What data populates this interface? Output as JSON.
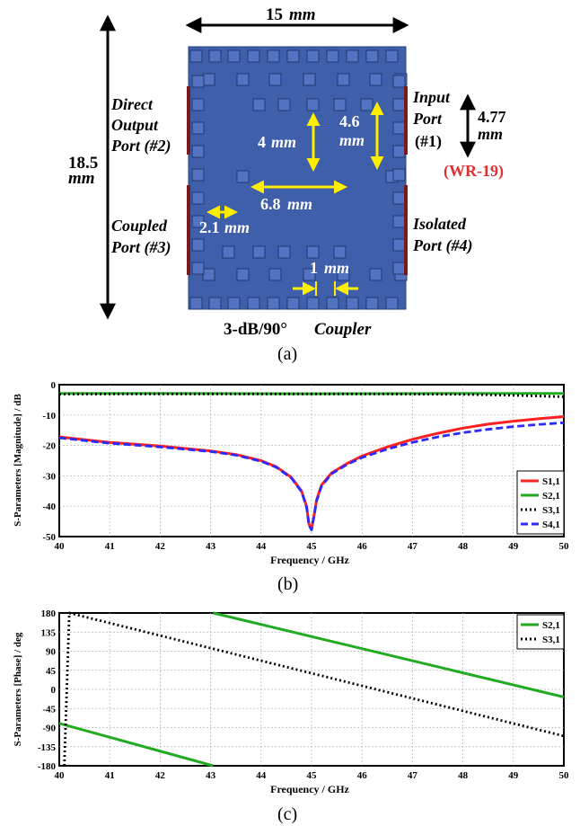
{
  "panel_a": {
    "width_value": "15",
    "width_unit": "mm",
    "height_value": "18.5",
    "height_unit": "mm",
    "direct_port": [
      "Direct",
      "Output",
      "Port (#2)"
    ],
    "coupled_port": [
      "Coupled",
      "Port (#3)"
    ],
    "input_port": [
      "Input",
      "Port",
      "(#1)"
    ],
    "isolated_port": [
      "Isolated",
      "Port (#4)"
    ],
    "waveguide_value": "4.77",
    "waveguide_unit": "mm",
    "waveguide_name": "(WR-19)",
    "dim_4_value": "4",
    "dim_4_unit": "mm",
    "dim_46_value": "4.6",
    "dim_46_unit": "mm",
    "dim_68_value": "6.8",
    "dim_68_unit": "mm",
    "dim_21_value": "2.1",
    "dim_21_unit": "mm",
    "dim_1_value": "1",
    "dim_1_unit": "mm",
    "coupler_caption_bold": "3-dB/90°",
    "coupler_caption_italic": "Coupler",
    "caption": "(a)",
    "colors": {
      "board": "#3f5fab",
      "post": "#5273c2",
      "port": "#7a1a1a",
      "dim": "#ffee00",
      "waveguide_text": "#e03030"
    }
  },
  "panel_b": {
    "caption": "(b)",
    "chart_data": {
      "type": "line",
      "xlabel": "Frequency / GHz",
      "ylabel": "S-Parameters [Magnitude] / dB",
      "xlim": [
        40,
        50
      ],
      "ylim": [
        -50,
        0
      ],
      "xticks": [
        "40",
        "41",
        "42",
        "43",
        "44",
        "45",
        "46",
        "47",
        "48",
        "49",
        "50"
      ],
      "yticks": [
        "0",
        "-10",
        "-20",
        "-30",
        "-40",
        "-50"
      ],
      "grid": true,
      "legend": "bottom-right",
      "series": [
        {
          "name": "S1,1",
          "color": "#ff2020",
          "style": "solid",
          "x": [
            40,
            41,
            42,
            43,
            43.5,
            44,
            44.3,
            44.6,
            44.8,
            44.9,
            44.95,
            45,
            45.05,
            45.1,
            45.2,
            45.4,
            45.7,
            46,
            46.5,
            47,
            47.5,
            48,
            48.5,
            49,
            49.5,
            50
          ],
          "y": [
            -17.2,
            -19,
            -20.2,
            -21.8,
            -23,
            -25,
            -27,
            -30.5,
            -35,
            -40,
            -46,
            -47.5,
            -43,
            -38,
            -33,
            -29,
            -26,
            -23.5,
            -20.5,
            -18,
            -16,
            -14.3,
            -13,
            -12,
            -11.2,
            -10.5
          ]
        },
        {
          "name": "S2,1",
          "color": "#22aa22",
          "style": "solid",
          "x": [
            40,
            42,
            44,
            45,
            46,
            48,
            50
          ],
          "y": [
            -2.9,
            -2.9,
            -2.95,
            -3,
            -2.95,
            -2.9,
            -2.9
          ]
        },
        {
          "name": "S3,1",
          "color": "#000000",
          "style": "dotted",
          "x": [
            40,
            42,
            44,
            45,
            46,
            47,
            48,
            49,
            50
          ],
          "y": [
            -3.1,
            -3.05,
            -3.05,
            -3.05,
            -3.05,
            -3.1,
            -3.2,
            -3.5,
            -4
          ]
        },
        {
          "name": "S4,1",
          "color": "#2a2aff",
          "style": "dashed",
          "x": [
            40,
            41,
            42,
            43,
            43.5,
            44,
            44.3,
            44.6,
            44.8,
            44.9,
            44.95,
            45,
            45.05,
            45.1,
            45.2,
            45.4,
            45.7,
            46,
            46.5,
            47,
            47.5,
            48,
            48.5,
            49,
            49.5,
            50
          ],
          "y": [
            -17.5,
            -19.3,
            -20.5,
            -22,
            -23.2,
            -25.2,
            -27.2,
            -30.7,
            -35.2,
            -40.2,
            -46.3,
            -47.8,
            -43.3,
            -38.3,
            -33.3,
            -29.3,
            -26.3,
            -24,
            -21.2,
            -19,
            -17.2,
            -15.8,
            -14.7,
            -13.8,
            -13.1,
            -12.5
          ]
        }
      ]
    }
  },
  "panel_c": {
    "caption": "(c)",
    "chart_data": {
      "type": "line",
      "xlabel": "Frequency / GHz",
      "ylabel": "S-Parameters [Phase] / deg",
      "xlim": [
        40,
        50
      ],
      "ylim": [
        -180,
        180
      ],
      "xticks": [
        "40",
        "41",
        "42",
        "43",
        "44",
        "45",
        "46",
        "47",
        "48",
        "49",
        "50"
      ],
      "yticks": [
        "180",
        "135",
        "90",
        "45",
        "0",
        "-45",
        "-90",
        "-135",
        "-180"
      ],
      "grid": true,
      "legend": "top-right",
      "series": [
        {
          "name": "S2,1",
          "color": "#22aa22",
          "style": "solid",
          "x": [
            40,
            43.05,
            43.05,
            43.05,
            50
          ],
          "y": [
            -80,
            -180,
            null,
            180,
            -18
          ]
        },
        {
          "name": "S3,1",
          "color": "#000000",
          "style": "dotted",
          "x": [
            40.1,
            40.15,
            40.2,
            50
          ],
          "y": [
            -180,
            0,
            180,
            -110
          ]
        }
      ]
    }
  }
}
